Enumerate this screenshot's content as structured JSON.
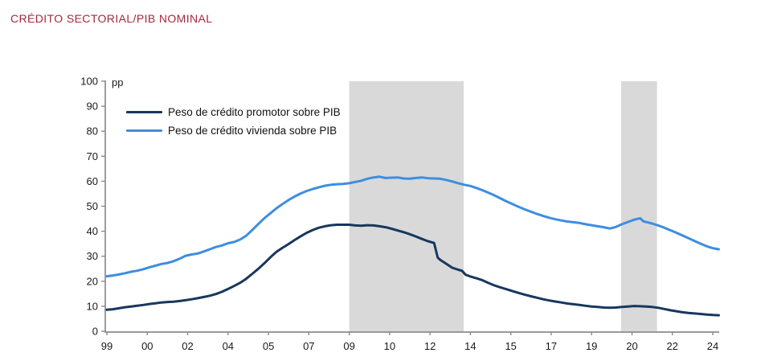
{
  "header": {
    "title": "CRÉDITO SECTORIAL/PIB NOMINAL",
    "title_color": "#A5283C"
  },
  "chart_data": {
    "type": "line",
    "title": "CRÉDITO SECTORIAL/PIB NOMINAL",
    "unit_label": "pp",
    "xlabel": "",
    "ylabel": "pp",
    "xlim": [
      1999,
      2024
    ],
    "ylim": [
      0,
      100
    ],
    "grid": "off",
    "legend_position": "top-left-inside",
    "axis_color": "#8C8C8C",
    "tick_label_color": "#1a1a1a",
    "band_color": "#D9D9D9",
    "y_ticks": [
      0,
      10,
      20,
      30,
      40,
      50,
      60,
      70,
      80,
      90,
      100
    ],
    "x_ticks": [
      {
        "label": "99",
        "year": 1999.0
      },
      {
        "label": "00",
        "year": 2000.667
      },
      {
        "label": "02",
        "year": 2002.333
      },
      {
        "label": "04",
        "year": 2004.0
      },
      {
        "label": "05",
        "year": 2005.667
      },
      {
        "label": "07",
        "year": 2007.333
      },
      {
        "label": "09",
        "year": 2009.0
      },
      {
        "label": "10",
        "year": 2010.667
      },
      {
        "label": "12",
        "year": 2012.333
      },
      {
        "label": "14",
        "year": 2014.0
      },
      {
        "label": "15",
        "year": 2015.667
      },
      {
        "label": "17",
        "year": 2017.333
      },
      {
        "label": "19",
        "year": 2019.0
      },
      {
        "label": "20",
        "year": 2020.667
      },
      {
        "label": "22",
        "year": 2022.333
      },
      {
        "label": "24",
        "year": 2024.0
      }
    ],
    "shaded_bands": [
      {
        "from": 2009.0,
        "to": 2013.72
      },
      {
        "from": 2020.22,
        "to": 2021.7
      }
    ],
    "legend": [
      {
        "label": "Peso de crédito promotor sobre PIB",
        "color": "#17375E"
      },
      {
        "label": "Peso de crédito vivienda sobre PIB",
        "color": "#3D8EE0"
      }
    ],
    "series": [
      {
        "key": "promotor",
        "name": "Peso de crédito promotor sobre PIB",
        "color": "#17375E",
        "points": [
          [
            1999.0,
            8.6
          ],
          [
            1999.25,
            8.8
          ],
          [
            1999.5,
            9.2
          ],
          [
            1999.75,
            9.6
          ],
          [
            2000.0,
            9.9
          ],
          [
            2000.25,
            10.2
          ],
          [
            2000.5,
            10.5
          ],
          [
            2000.75,
            10.9
          ],
          [
            2001.0,
            11.2
          ],
          [
            2001.25,
            11.5
          ],
          [
            2001.5,
            11.7
          ],
          [
            2001.75,
            11.8
          ],
          [
            2002.0,
            12.1
          ],
          [
            2002.25,
            12.4
          ],
          [
            2002.5,
            12.8
          ],
          [
            2002.75,
            13.2
          ],
          [
            2003.0,
            13.7
          ],
          [
            2003.25,
            14.2
          ],
          [
            2003.5,
            14.9
          ],
          [
            2003.75,
            15.8
          ],
          [
            2004.0,
            16.9
          ],
          [
            2004.25,
            18.1
          ],
          [
            2004.5,
            19.4
          ],
          [
            2004.75,
            21.0
          ],
          [
            2005.0,
            23.0
          ],
          [
            2005.25,
            25.0
          ],
          [
            2005.5,
            27.2
          ],
          [
            2005.75,
            29.6
          ],
          [
            2006.0,
            31.8
          ],
          [
            2006.25,
            33.4
          ],
          [
            2006.5,
            34.9
          ],
          [
            2006.75,
            36.5
          ],
          [
            2007.0,
            38.0
          ],
          [
            2007.25,
            39.4
          ],
          [
            2007.5,
            40.5
          ],
          [
            2007.75,
            41.4
          ],
          [
            2008.0,
            42.0
          ],
          [
            2008.25,
            42.4
          ],
          [
            2008.5,
            42.6
          ],
          [
            2008.75,
            42.6
          ],
          [
            2009.0,
            42.6
          ],
          [
            2009.25,
            42.3
          ],
          [
            2009.5,
            42.2
          ],
          [
            2009.75,
            42.4
          ],
          [
            2010.0,
            42.3
          ],
          [
            2010.25,
            42.0
          ],
          [
            2010.5,
            41.6
          ],
          [
            2010.75,
            41.0
          ],
          [
            2011.0,
            40.3
          ],
          [
            2011.25,
            39.6
          ],
          [
            2011.5,
            38.8
          ],
          [
            2011.75,
            37.9
          ],
          [
            2012.0,
            36.9
          ],
          [
            2012.25,
            36.0
          ],
          [
            2012.5,
            35.3
          ],
          [
            2012.65,
            29.5
          ],
          [
            2012.75,
            28.6
          ],
          [
            2013.0,
            27.0
          ],
          [
            2013.25,
            25.4
          ],
          [
            2013.5,
            24.6
          ],
          [
            2013.65,
            24.2
          ],
          [
            2013.8,
            22.6
          ],
          [
            2014.0,
            21.9
          ],
          [
            2014.25,
            21.2
          ],
          [
            2014.5,
            20.4
          ],
          [
            2014.75,
            19.3
          ],
          [
            2015.0,
            18.3
          ],
          [
            2015.25,
            17.5
          ],
          [
            2015.5,
            16.8
          ],
          [
            2015.75,
            16.0
          ],
          [
            2016.0,
            15.3
          ],
          [
            2016.25,
            14.6
          ],
          [
            2016.5,
            14.0
          ],
          [
            2016.75,
            13.4
          ],
          [
            2017.0,
            12.8
          ],
          [
            2017.25,
            12.3
          ],
          [
            2017.5,
            11.9
          ],
          [
            2017.75,
            11.5
          ],
          [
            2018.0,
            11.1
          ],
          [
            2018.25,
            10.8
          ],
          [
            2018.5,
            10.5
          ],
          [
            2018.75,
            10.2
          ],
          [
            2019.0,
            9.9
          ],
          [
            2019.25,
            9.7
          ],
          [
            2019.5,
            9.5
          ],
          [
            2019.75,
            9.4
          ],
          [
            2020.0,
            9.5
          ],
          [
            2020.25,
            9.7
          ],
          [
            2020.5,
            9.9
          ],
          [
            2020.75,
            10.1
          ],
          [
            2021.0,
            10.0
          ],
          [
            2021.25,
            9.9
          ],
          [
            2021.5,
            9.7
          ],
          [
            2021.75,
            9.4
          ],
          [
            2022.0,
            8.9
          ],
          [
            2022.25,
            8.4
          ],
          [
            2022.5,
            8.0
          ],
          [
            2022.75,
            7.6
          ],
          [
            2023.0,
            7.3
          ],
          [
            2023.25,
            7.1
          ],
          [
            2023.5,
            6.9
          ],
          [
            2023.75,
            6.7
          ],
          [
            2024.0,
            6.5
          ],
          [
            2024.25,
            6.4
          ]
        ]
      },
      {
        "key": "vivienda",
        "name": "Peso de crédito vivienda sobre PIB",
        "color": "#3D8EE0",
        "points": [
          [
            1999.0,
            22.0
          ],
          [
            1999.25,
            22.3
          ],
          [
            1999.5,
            22.7
          ],
          [
            1999.75,
            23.2
          ],
          [
            2000.0,
            23.8
          ],
          [
            2000.25,
            24.2
          ],
          [
            2000.5,
            24.8
          ],
          [
            2000.75,
            25.6
          ],
          [
            2001.0,
            26.2
          ],
          [
            2001.25,
            26.9
          ],
          [
            2001.5,
            27.3
          ],
          [
            2001.75,
            28.0
          ],
          [
            2002.0,
            29.0
          ],
          [
            2002.25,
            30.2
          ],
          [
            2002.5,
            30.7
          ],
          [
            2002.75,
            31.1
          ],
          [
            2003.0,
            31.9
          ],
          [
            2003.25,
            32.8
          ],
          [
            2003.5,
            33.7
          ],
          [
            2003.75,
            34.3
          ],
          [
            2004.0,
            35.2
          ],
          [
            2004.25,
            35.7
          ],
          [
            2004.5,
            36.7
          ],
          [
            2004.75,
            38.2
          ],
          [
            2005.0,
            40.5
          ],
          [
            2005.25,
            42.9
          ],
          [
            2005.5,
            45.2
          ],
          [
            2005.75,
            47.2
          ],
          [
            2006.0,
            49.2
          ],
          [
            2006.25,
            50.9
          ],
          [
            2006.5,
            52.5
          ],
          [
            2006.75,
            53.9
          ],
          [
            2007.0,
            55.1
          ],
          [
            2007.25,
            56.1
          ],
          [
            2007.5,
            56.9
          ],
          [
            2007.75,
            57.6
          ],
          [
            2008.0,
            58.2
          ],
          [
            2008.25,
            58.6
          ],
          [
            2008.5,
            58.8
          ],
          [
            2008.75,
            58.9
          ],
          [
            2009.0,
            59.2
          ],
          [
            2009.25,
            59.7
          ],
          [
            2009.5,
            60.2
          ],
          [
            2009.75,
            61.0
          ],
          [
            2010.0,
            61.5
          ],
          [
            2010.25,
            61.8
          ],
          [
            2010.5,
            61.3
          ],
          [
            2010.75,
            61.4
          ],
          [
            2011.0,
            61.5
          ],
          [
            2011.25,
            61.1
          ],
          [
            2011.5,
            61.0
          ],
          [
            2011.75,
            61.3
          ],
          [
            2012.0,
            61.5
          ],
          [
            2012.25,
            61.2
          ],
          [
            2012.5,
            61.1
          ],
          [
            2012.75,
            61.0
          ],
          [
            2013.0,
            60.5
          ],
          [
            2013.25,
            59.9
          ],
          [
            2013.5,
            59.2
          ],
          [
            2013.75,
            58.6
          ],
          [
            2014.0,
            58.1
          ],
          [
            2014.25,
            57.3
          ],
          [
            2014.5,
            56.4
          ],
          [
            2014.75,
            55.4
          ],
          [
            2015.0,
            54.3
          ],
          [
            2015.25,
            53.1
          ],
          [
            2015.5,
            51.9
          ],
          [
            2015.75,
            50.8
          ],
          [
            2016.0,
            49.7
          ],
          [
            2016.25,
            48.7
          ],
          [
            2016.5,
            47.8
          ],
          [
            2016.75,
            46.9
          ],
          [
            2017.0,
            46.1
          ],
          [
            2017.25,
            45.4
          ],
          [
            2017.5,
            44.8
          ],
          [
            2017.75,
            44.3
          ],
          [
            2018.0,
            43.9
          ],
          [
            2018.25,
            43.6
          ],
          [
            2018.5,
            43.3
          ],
          [
            2018.75,
            42.8
          ],
          [
            2019.0,
            42.4
          ],
          [
            2019.25,
            42.0
          ],
          [
            2019.5,
            41.6
          ],
          [
            2019.75,
            41.1
          ],
          [
            2020.0,
            41.7
          ],
          [
            2020.25,
            42.8
          ],
          [
            2020.5,
            43.7
          ],
          [
            2020.75,
            44.6
          ],
          [
            2021.0,
            45.2
          ],
          [
            2021.15,
            43.9
          ],
          [
            2021.25,
            43.7
          ],
          [
            2021.5,
            43.1
          ],
          [
            2021.75,
            42.3
          ],
          [
            2022.0,
            41.4
          ],
          [
            2022.25,
            40.4
          ],
          [
            2022.5,
            39.4
          ],
          [
            2022.75,
            38.3
          ],
          [
            2023.0,
            37.2
          ],
          [
            2023.25,
            36.1
          ],
          [
            2023.5,
            35.0
          ],
          [
            2023.75,
            34.0
          ],
          [
            2024.0,
            33.2
          ],
          [
            2024.25,
            32.8
          ]
        ]
      }
    ]
  }
}
